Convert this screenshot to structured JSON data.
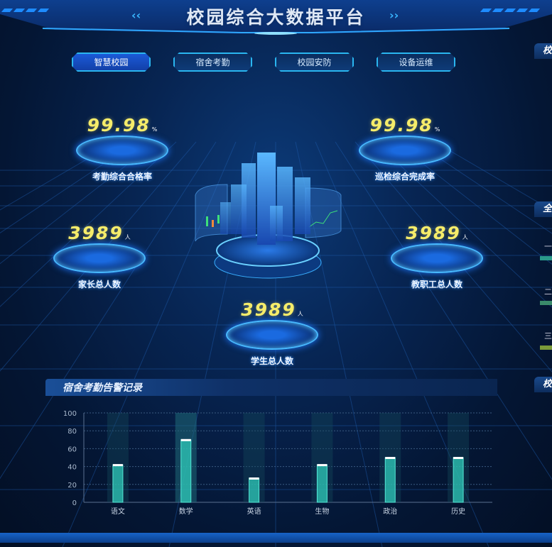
{
  "header": {
    "title": "校园综合大数据平台"
  },
  "tabs": [
    {
      "label": "智慧校园",
      "active": true
    },
    {
      "label": "宿舍考勤",
      "active": false
    },
    {
      "label": "校园安防",
      "active": false
    },
    {
      "label": "设备运维",
      "active": false
    }
  ],
  "stats": [
    {
      "value": "99.98",
      "unit": "%",
      "label": "考勤综合合格率"
    },
    {
      "value": "99.98",
      "unit": "%",
      "label": "巡检综合完成率"
    },
    {
      "value": "3989",
      "unit": "人",
      "label": "家长总人数"
    },
    {
      "value": "3989",
      "unit": "人",
      "label": "教职工总人数"
    },
    {
      "value": "3989",
      "unit": "人",
      "label": "学生总人数"
    }
  ],
  "right_panels": {
    "heads": [
      "校",
      "全",
      "校"
    ],
    "items": [
      "一",
      "二",
      "三"
    ]
  },
  "section": {
    "title": "宿舍考勤告警记录"
  },
  "colors": {
    "accent": "#2ab6f0",
    "value": "#f5ec6a",
    "bar": "#2fc9b8"
  },
  "chart_data": {
    "type": "bar",
    "categories": [
      "语文",
      "数学",
      "英语",
      "生物",
      "政治",
      "历史"
    ],
    "values": [
      42,
      70,
      27,
      42,
      50,
      50
    ],
    "ylim": [
      0,
      100
    ],
    "yticks": [
      0,
      20,
      40,
      60,
      80,
      100
    ],
    "grid": true,
    "highlighted_category": "数学"
  }
}
